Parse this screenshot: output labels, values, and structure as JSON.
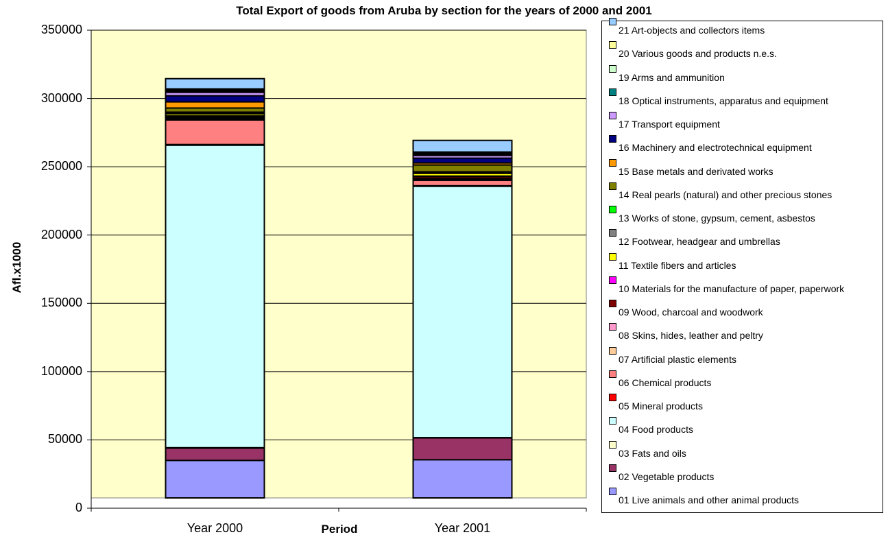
{
  "chart_data": {
    "type": "bar",
    "stacked": true,
    "title": "Total Export of goods from Aruba by section for the years of 2000 and 2001",
    "xlabel": "Period",
    "ylabel": "Afl.x1000",
    "categories": [
      "Year 2000",
      "Year 2001"
    ],
    "ylim": [
      0,
      350000
    ],
    "yticks": [
      "0",
      "50000",
      "100000",
      "150000",
      "200000",
      "250000",
      "300000",
      "350000"
    ],
    "grid": true,
    "plot_background": "#ffffcc",
    "legend_position": "right",
    "series": [
      {
        "name": "01 Live animals and other animal products",
        "color": "#9999ff",
        "values": [
          35000,
          35500
        ]
      },
      {
        "name": "02 Vegetable products",
        "color": "#993366",
        "values": [
          9000,
          16000
        ]
      },
      {
        "name": "03 Fats and oils",
        "color": "#ffffcc",
        "values": [
          300,
          200
        ]
      },
      {
        "name": "04 Food products",
        "color": "#ccffff",
        "values": [
          221500,
          184000
        ]
      },
      {
        "name": "05 Mineral products",
        "color": "#ff0000",
        "values": [
          500,
          400
        ]
      },
      {
        "name": "06 Chemical products",
        "color": "#ff8080",
        "values": [
          18000,
          4000
        ]
      },
      {
        "name": "07 Artificial plastic elements",
        "color": "#ffcc99",
        "values": [
          1000,
          800
        ]
      },
      {
        "name": "08 Skins, hides, leather and peltry",
        "color": "#ff99cc",
        "values": [
          500,
          500
        ]
      },
      {
        "name": "09 Wood, charcoal and woodwork",
        "color": "#800000",
        "values": [
          1000,
          1500
        ]
      },
      {
        "name": "10 Materials for the manufacture of paper, paperwork",
        "color": "#ff00ff",
        "values": [
          400,
          300
        ]
      },
      {
        "name": "11 Textile fibers and articles",
        "color": "#ffff00",
        "values": [
          1500,
          2000
        ]
      },
      {
        "name": "12 Footwear, headgear and umbrellas",
        "color": "#808080",
        "values": [
          800,
          700
        ]
      },
      {
        "name": "13 Works of stone, gypsum, cement, asbestos",
        "color": "#00ff00",
        "values": [
          500,
          400
        ]
      },
      {
        "name": "14 Real pearls (natural) and other precious stones",
        "color": "#808000",
        "values": [
          3000,
          5000
        ]
      },
      {
        "name": "15 Base metals and derivated works",
        "color": "#ff9900",
        "values": [
          4500,
          1500
        ]
      },
      {
        "name": "16 Machinery and electrotechnical equipment",
        "color": "#000080",
        "values": [
          4500,
          3500
        ]
      },
      {
        "name": "17 Transport equipment",
        "color": "#cc99ff",
        "values": [
          2500,
          2000
        ]
      },
      {
        "name": "18 Optical instruments, apparatus and equipment",
        "color": "#008080",
        "values": [
          1000,
          1000
        ]
      },
      {
        "name": "19 Arms and ammunition",
        "color": "#ccffcc",
        "values": [
          500,
          500
        ]
      },
      {
        "name": "20 Various goods and products n.e.s.",
        "color": "#ffff99",
        "values": [
          1000,
          1000
        ]
      },
      {
        "name": "21 Art-objects and collectors items",
        "color": "#99ccff",
        "values": [
          7500,
          8500
        ]
      }
    ]
  }
}
